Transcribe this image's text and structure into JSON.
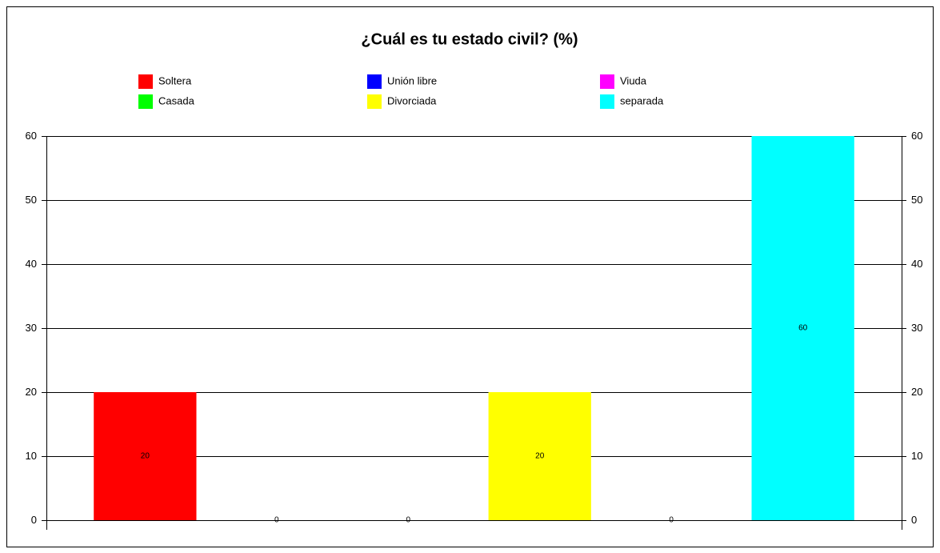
{
  "chart_data": {
    "type": "bar",
    "title": "¿Cuál es tu estado civil? (%)",
    "series": [
      {
        "name": "Soltera",
        "color": "#ff0000",
        "values": [
          20
        ]
      },
      {
        "name": "Casada",
        "color": "#00ff00",
        "values": [
          0
        ]
      },
      {
        "name": "Unión libre",
        "color": "#0000ff",
        "values": [
          0
        ]
      },
      {
        "name": "Divorciada",
        "color": "#ffff00",
        "values": [
          20
        ]
      },
      {
        "name": "Viuda",
        "color": "#ff00ff",
        "values": [
          0
        ]
      },
      {
        "name": "separada",
        "color": "#00ffff",
        "values": [
          60
        ]
      }
    ],
    "ylim": [
      0,
      60
    ],
    "yticks": [
      0,
      10,
      20,
      30,
      40,
      50,
      60
    ],
    "y2lim": [
      0,
      60
    ],
    "y2ticks": [
      0,
      10,
      20,
      30,
      40,
      50,
      60
    ],
    "grid": true,
    "legend": "top"
  }
}
